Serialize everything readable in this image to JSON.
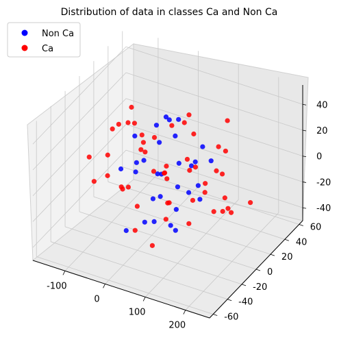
{
  "chart_data": {
    "type": "scatter",
    "projection": "3d",
    "title": "Distribution of data in classes Ca and Non Ca",
    "xlabel": "",
    "ylabel": "",
    "zlabel": "",
    "x_ticks": [
      -100,
      0,
      100,
      200
    ],
    "y_ticks": [
      -60,
      -40,
      -20,
      0,
      20,
      40,
      60
    ],
    "z_ticks": [
      -40,
      -20,
      0,
      20,
      40
    ],
    "xlim": [
      -180,
      260
    ],
    "ylim": [
      -65,
      65
    ],
    "zlim": [
      -50,
      55
    ],
    "grid": true,
    "legend_position": "upper-left",
    "series": [
      {
        "name": "Non Ca",
        "color": "#0000ff",
        "points": [
          [
            -20,
            -10,
            10
          ],
          [
            10,
            5,
            20
          ],
          [
            30,
            -15,
            -10
          ],
          [
            50,
            10,
            5
          ],
          [
            70,
            -5,
            -20
          ],
          [
            0,
            20,
            30
          ],
          [
            -40,
            0,
            -5
          ],
          [
            20,
            25,
            -25
          ],
          [
            60,
            -20,
            15
          ],
          [
            90,
            5,
            10
          ],
          [
            -10,
            -30,
            -30
          ],
          [
            40,
            15,
            35
          ],
          [
            80,
            20,
            -15
          ],
          [
            110,
            -10,
            0
          ],
          [
            -60,
            10,
            15
          ],
          [
            25,
            -25,
            25
          ],
          [
            55,
            30,
            -5
          ],
          [
            100,
            15,
            20
          ],
          [
            -30,
            25,
            -20
          ],
          [
            15,
            -5,
            -35
          ],
          [
            75,
            -30,
            5
          ],
          [
            120,
            0,
            -10
          ],
          [
            35,
            5,
            40
          ],
          [
            -50,
            -15,
            5
          ],
          [
            5,
            30,
            10
          ],
          [
            65,
            -10,
            -30
          ],
          [
            95,
            -20,
            -25
          ],
          [
            45,
            -35,
            -15
          ],
          [
            130,
            10,
            15
          ],
          [
            -15,
            15,
            25
          ]
        ]
      },
      {
        "name": "Ca",
        "color": "#ff0000",
        "points": [
          [
            -100,
            10,
            20
          ],
          [
            -80,
            -10,
            30
          ],
          [
            -60,
            20,
            10
          ],
          [
            -40,
            -20,
            -5
          ],
          [
            -20,
            15,
            15
          ],
          [
            0,
            -15,
            25
          ],
          [
            20,
            10,
            -10
          ],
          [
            40,
            -5,
            5
          ],
          [
            60,
            25,
            20
          ],
          [
            80,
            -25,
            -15
          ],
          [
            100,
            5,
            10
          ],
          [
            120,
            -10,
            -5
          ],
          [
            140,
            20,
            0
          ],
          [
            160,
            -15,
            15
          ],
          [
            180,
            10,
            -20
          ],
          [
            -90,
            -30,
            0
          ],
          [
            -70,
            30,
            -10
          ],
          [
            -50,
            -5,
            35
          ],
          [
            -30,
            35,
            -25
          ],
          [
            -10,
            -35,
            5
          ],
          [
            10,
            40,
            15
          ],
          [
            30,
            -40,
            -20
          ],
          [
            50,
            0,
            40
          ],
          [
            70,
            35,
            -30
          ],
          [
            90,
            -30,
            30
          ],
          [
            110,
            25,
            -35
          ],
          [
            130,
            -20,
            25
          ],
          [
            150,
            15,
            -25
          ],
          [
            170,
            -5,
            20
          ],
          [
            190,
            0,
            -10
          ],
          [
            -110,
            0,
            -15
          ],
          [
            -85,
            15,
            -30
          ],
          [
            -65,
            -25,
            20
          ],
          [
            -45,
            5,
            -35
          ],
          [
            -25,
            -10,
            40
          ],
          [
            -5,
            25,
            -40
          ],
          [
            15,
            -20,
            35
          ],
          [
            35,
            30,
            -5
          ],
          [
            55,
            -30,
            -35
          ],
          [
            75,
            10,
            45
          ],
          [
            95,
            40,
            5
          ],
          [
            115,
            -40,
            10
          ],
          [
            135,
            30,
            35
          ],
          [
            155,
            -35,
            -5
          ],
          [
            175,
            5,
            30
          ],
          [
            200,
            -10,
            5
          ],
          [
            210,
            20,
            -15
          ],
          [
            -120,
            -20,
            10
          ],
          [
            -95,
            25,
            25
          ],
          [
            5,
            0,
            0
          ]
        ]
      }
    ]
  }
}
